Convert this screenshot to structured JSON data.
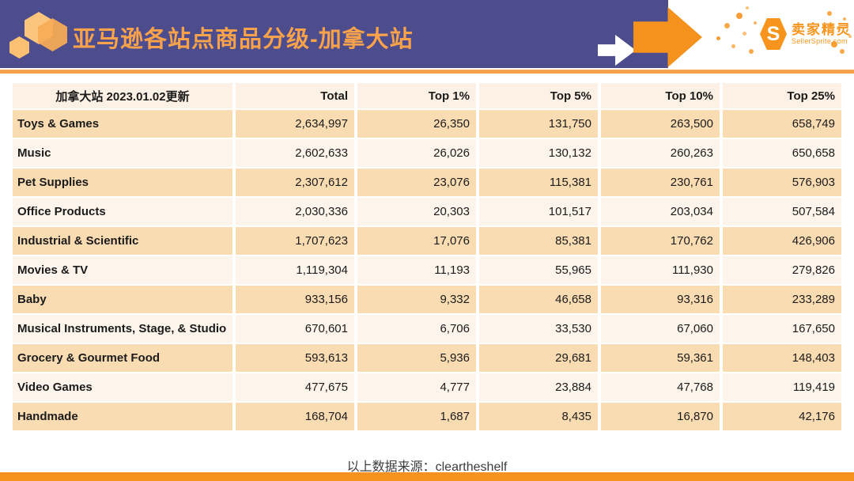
{
  "header": {
    "title": "亚马逊各站点商品分级-加拿大站",
    "brand": {
      "monogram": "S",
      "name_cn": "卖家精灵",
      "domain": "SellerSprite.com"
    }
  },
  "colors": {
    "header_purple": "#4D4D8E",
    "accent_orange": "#F5921E",
    "title_orange": "#F8A24B",
    "row_orange": "#FADCB3",
    "row_cream": "#FDF5EC",
    "header_row_bg": "#FCF1E4"
  },
  "table": {
    "columns": [
      "加拿大站 2023.01.02更新",
      "Total",
      "Top 1%",
      "Top 5%",
      "Top 10%",
      "Top 25%"
    ],
    "rows": [
      {
        "category": "Toys & Games",
        "values": [
          "2,634,997",
          "26,350",
          "131,750",
          "263,500",
          "658,749"
        ]
      },
      {
        "category": "Music",
        "values": [
          "2,602,633",
          "26,026",
          "130,132",
          "260,263",
          "650,658"
        ]
      },
      {
        "category": "Pet Supplies",
        "values": [
          "2,307,612",
          "23,076",
          "115,381",
          "230,761",
          "576,903"
        ]
      },
      {
        "category": "Office Products",
        "values": [
          "2,030,336",
          "20,303",
          "101,517",
          "203,034",
          "507,584"
        ]
      },
      {
        "category": "Industrial & Scientific",
        "values": [
          "1,707,623",
          "17,076",
          "85,381",
          "170,762",
          "426,906"
        ]
      },
      {
        "category": "Movies & TV",
        "values": [
          "1,119,304",
          "11,193",
          "55,965",
          "111,930",
          "279,826"
        ]
      },
      {
        "category": "Baby",
        "values": [
          "933,156",
          "9,332",
          "46,658",
          "93,316",
          "233,289"
        ]
      },
      {
        "category": "Musical Instruments, Stage, & Studio",
        "values": [
          "670,601",
          "6,706",
          "33,530",
          "67,060",
          "167,650"
        ]
      },
      {
        "category": "Grocery & Gourmet Food",
        "values": [
          "593,613",
          "5,936",
          "29,681",
          "59,361",
          "148,403"
        ]
      },
      {
        "category": "Video Games",
        "values": [
          "477,675",
          "4,777",
          "23,884",
          "47,768",
          "119,419"
        ]
      },
      {
        "category": "Handmade",
        "values": [
          "168,704",
          "1,687",
          "8,435",
          "16,870",
          "42,176"
        ]
      }
    ]
  },
  "footer": {
    "source_note": "以上数据来源：cleartheshelf"
  }
}
